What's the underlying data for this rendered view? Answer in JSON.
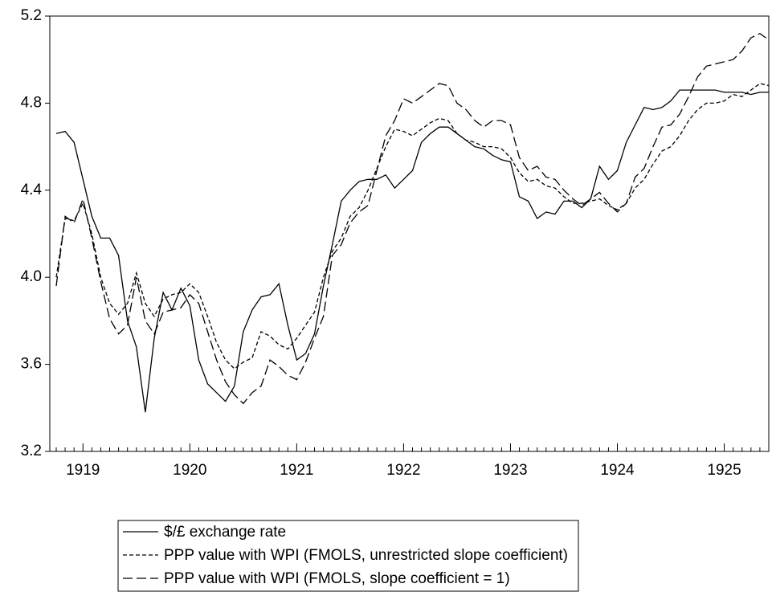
{
  "chart_data": {
    "type": "line",
    "categories": [
      null,
      null,
      null,
      "1919",
      null,
      null,
      null,
      null,
      null,
      null,
      null,
      null,
      null,
      null,
      null,
      "1920",
      null,
      null,
      null,
      null,
      null,
      null,
      null,
      null,
      null,
      null,
      null,
      "1921",
      null,
      null,
      null,
      null,
      null,
      null,
      null,
      null,
      null,
      null,
      null,
      "1922",
      null,
      null,
      null,
      null,
      null,
      null,
      null,
      null,
      null,
      null,
      null,
      "1923",
      null,
      null,
      null,
      null,
      null,
      null,
      null,
      null,
      null,
      null,
      null,
      "1924",
      null,
      null,
      null,
      null,
      null,
      null,
      null,
      null,
      null,
      null,
      null,
      "1925",
      null,
      null,
      null,
      null,
      null
    ],
    "series": [
      {
        "name": "$/£ exchange rate",
        "color": "#000000",
        "dash": "solid",
        "values": [
          4.66,
          4.67,
          4.62,
          4.45,
          4.28,
          4.18,
          4.18,
          4.1,
          3.8,
          3.68,
          3.38,
          3.72,
          3.93,
          3.85,
          3.95,
          3.87,
          3.62,
          3.51,
          3.47,
          3.43,
          3.5,
          3.75,
          3.85,
          3.91,
          3.92,
          3.97,
          3.78,
          3.62,
          3.65,
          3.74,
          3.96,
          4.15,
          4.35,
          4.4,
          4.44,
          4.45,
          4.45,
          4.47,
          4.41,
          4.45,
          4.49,
          4.62,
          4.66,
          4.69,
          4.69,
          4.66,
          4.63,
          4.6,
          4.59,
          4.56,
          4.54,
          4.53,
          4.37,
          4.35,
          4.27,
          4.3,
          4.29,
          4.35,
          4.35,
          4.32,
          4.36,
          4.51,
          4.45,
          4.49,
          4.62,
          4.7,
          4.78,
          4.77,
          4.78,
          4.81,
          4.86,
          4.86,
          4.86,
          4.86,
          4.86,
          4.85,
          4.85,
          4.85,
          4.84,
          4.85,
          4.85
        ]
      },
      {
        "name": "PPP value with WPI (FMOLS, unrestricted slope coefficient)",
        "color": "#000000",
        "dash": "short",
        "values": [
          4.0,
          4.27,
          4.26,
          4.34,
          4.2,
          4.0,
          3.88,
          3.83,
          3.88,
          4.02,
          3.88,
          3.82,
          3.9,
          3.92,
          3.93,
          3.97,
          3.93,
          3.82,
          3.7,
          3.62,
          3.58,
          3.61,
          3.63,
          3.75,
          3.73,
          3.69,
          3.67,
          3.72,
          3.78,
          3.84,
          4.0,
          4.12,
          4.18,
          4.28,
          4.32,
          4.4,
          4.5,
          4.6,
          4.68,
          4.67,
          4.65,
          4.68,
          4.71,
          4.73,
          4.72,
          4.66,
          4.63,
          4.62,
          4.6,
          4.6,
          4.59,
          4.55,
          4.48,
          4.44,
          4.45,
          4.42,
          4.41,
          4.37,
          4.34,
          4.34,
          4.35,
          4.36,
          4.33,
          4.31,
          4.34,
          4.41,
          4.45,
          4.52,
          4.58,
          4.6,
          4.65,
          4.72,
          4.77,
          4.8,
          4.8,
          4.81,
          4.84,
          4.83,
          4.86,
          4.89,
          4.88
        ]
      },
      {
        "name": "PPP value with WPI (FMOLS, slope coefficient = 1)",
        "color": "#000000",
        "dash": "long",
        "values": [
          3.96,
          4.28,
          4.25,
          4.36,
          4.18,
          3.98,
          3.81,
          3.74,
          3.78,
          4.0,
          3.8,
          3.74,
          3.84,
          3.85,
          3.86,
          3.92,
          3.88,
          3.75,
          3.62,
          3.52,
          3.46,
          3.42,
          3.47,
          3.5,
          3.62,
          3.59,
          3.55,
          3.53,
          3.61,
          3.72,
          3.82,
          4.1,
          4.15,
          4.25,
          4.3,
          4.33,
          4.49,
          4.65,
          4.72,
          4.82,
          4.8,
          4.83,
          4.86,
          4.89,
          4.88,
          4.8,
          4.77,
          4.72,
          4.69,
          4.72,
          4.72,
          4.7,
          4.55,
          4.49,
          4.51,
          4.46,
          4.45,
          4.4,
          4.36,
          4.33,
          4.36,
          4.39,
          4.34,
          4.3,
          4.34,
          4.46,
          4.5,
          4.6,
          4.69,
          4.7,
          4.75,
          4.83,
          4.92,
          4.97,
          4.98,
          4.99,
          5.0,
          5.04,
          5.1,
          5.12,
          5.09
        ]
      }
    ],
    "ylim": [
      3.2,
      5.2
    ],
    "yticks": [
      3.2,
      3.6,
      {
        "value": 4.0,
        "label": "4.0"
      },
      4.4,
      4.8,
      5.2
    ],
    "legend": "bottom"
  }
}
